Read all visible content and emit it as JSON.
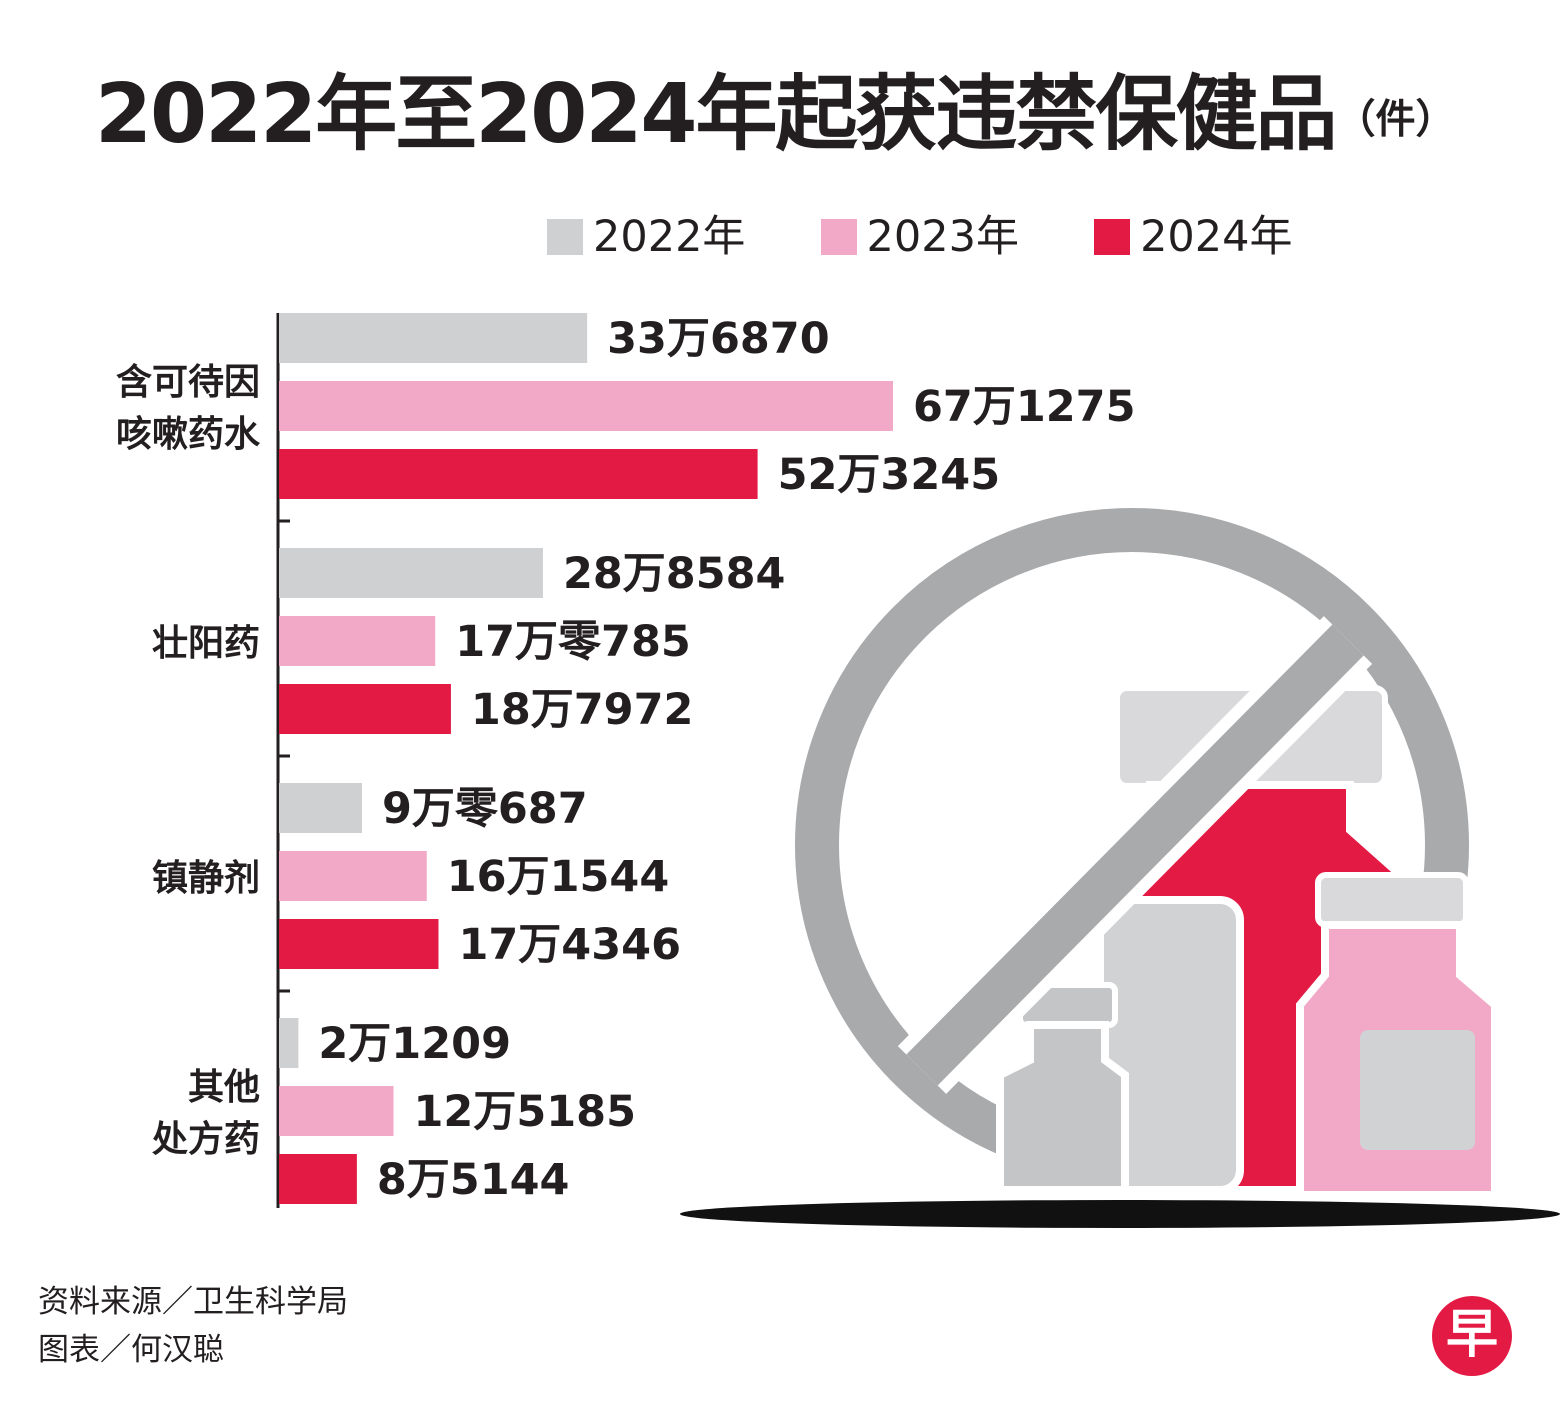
{
  "title": "2022年至2024年起获违禁保健品",
  "title_unit": "（件）",
  "colors": {
    "y2022": "#cfd0d2",
    "y2023": "#f2a9c8",
    "y2024": "#e31b44",
    "text": "#231f20",
    "prohibit": "#a9aaac"
  },
  "legend": [
    {
      "label": "2022年",
      "color": "#cfd0d2"
    },
    {
      "label": "2023年",
      "color": "#f2a9c8"
    },
    {
      "label": "2024年",
      "color": "#e31b44"
    }
  ],
  "chart_data": {
    "type": "bar",
    "orientation": "horizontal",
    "title": "2022年至2024年起获违禁保健品（件）",
    "categories": [
      {
        "line1": "含可待因",
        "line2": "咳嗽药水"
      },
      {
        "line1": "壮阳药",
        "line2": ""
      },
      {
        "line1": "镇静剂",
        "line2": ""
      },
      {
        "line1": "其他",
        "line2": "处方药"
      }
    ],
    "series": [
      {
        "name": "2022年",
        "values": [
          336870,
          288584,
          90687,
          21209
        ],
        "labels": [
          "33万6870",
          "28万8584",
          "9万零687",
          "2万1209"
        ]
      },
      {
        "name": "2023年",
        "values": [
          671275,
          170785,
          161544,
          125185
        ],
        "labels": [
          "67万1275",
          "17万零785",
          "16万1544",
          "12万5185"
        ]
      },
      {
        "name": "2024年",
        "values": [
          523245,
          187972,
          174346,
          85144
        ],
        "labels": [
          "52万3245",
          "18万7972",
          "17万4346",
          "8万5144"
        ]
      }
    ],
    "xlim": [
      0,
      1000000
    ]
  },
  "footer": {
    "source": "资料来源／卫生科学局",
    "credit": "图表／何汉聪"
  },
  "logo_text": "早"
}
